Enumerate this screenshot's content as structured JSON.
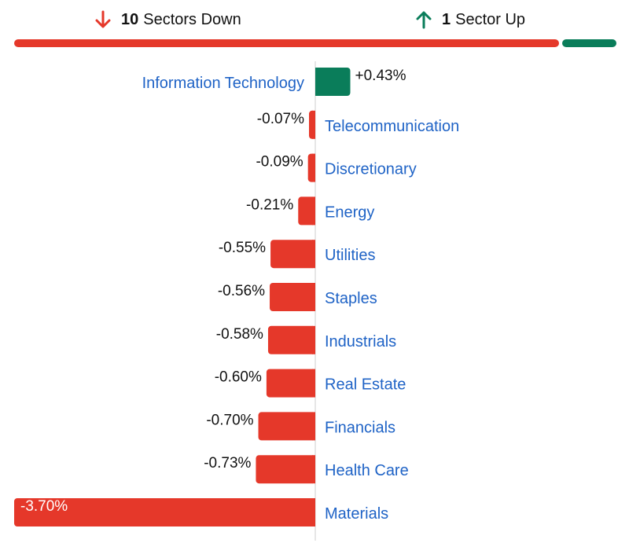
{
  "summary": {
    "down": {
      "count": "10",
      "label": "Sectors Down",
      "icon": "arrow-down-icon",
      "color": "#e5382a"
    },
    "up": {
      "count": "1",
      "label": "Sector Up",
      "icon": "arrow-up-icon",
      "color": "#0a7d5a"
    },
    "ratio": {
      "down": 10,
      "up": 1
    }
  },
  "colors": {
    "negative": "#e5382a",
    "positive": "#0a7d5a",
    "label": "#1f63c6",
    "axis": "#cccccc"
  },
  "chart_data": {
    "type": "bar",
    "orientation": "horizontal-diverging",
    "categories": [
      "Information Technology",
      "Telecommunication",
      "Discretionary",
      "Energy",
      "Utilities",
      "Staples",
      "Industrials",
      "Real Estate",
      "Financials",
      "Health Care",
      "Materials"
    ],
    "values": [
      0.43,
      -0.07,
      -0.09,
      -0.21,
      -0.55,
      -0.56,
      -0.58,
      -0.6,
      -0.7,
      -0.73,
      -3.7
    ],
    "value_labels": [
      "+0.43%",
      "-0.07%",
      "-0.09%",
      "-0.21%",
      "-0.55%",
      "-0.56%",
      "-0.58%",
      "-0.60%",
      "-0.70%",
      "-0.73%",
      "-3.70%"
    ],
    "unit": "%",
    "xlim": [
      -3.7,
      3.7
    ]
  }
}
